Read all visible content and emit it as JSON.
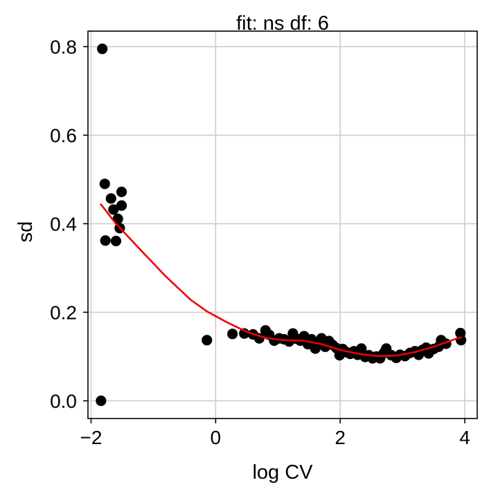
{
  "chart_data": {
    "type": "scatter",
    "title": "fit: ns df: 6",
    "xlabel": "log CV",
    "ylabel": "sd",
    "xlim": [
      -2.05,
      4.2
    ],
    "ylim": [
      -0.04,
      0.835
    ],
    "grid": true,
    "xticks": [
      -2,
      0,
      2,
      4
    ],
    "xtick_labels": [
      "−2",
      "0",
      "2",
      "4"
    ],
    "yticks": [
      0.0,
      0.2,
      0.4,
      0.6,
      0.8
    ],
    "ytick_labels": [
      "0.0",
      "0.2",
      "0.4",
      "0.6",
      "0.8"
    ],
    "colors": {
      "points": "#000000",
      "fit": "#ee0000",
      "grid": "#cccccc",
      "axes": "#000000"
    },
    "series": [
      {
        "kind": "scatter",
        "points": [
          [
            -1.82,
            0.795
          ],
          [
            -1.84,
            0.0
          ],
          [
            -1.78,
            0.49
          ],
          [
            -1.77,
            0.362
          ],
          [
            -1.68,
            0.457
          ],
          [
            -1.64,
            0.432
          ],
          [
            -1.6,
            0.361
          ],
          [
            -1.57,
            0.411
          ],
          [
            -1.54,
            0.39
          ],
          [
            -1.51,
            0.472
          ],
          [
            -1.51,
            0.441
          ],
          [
            -0.14,
            0.137
          ],
          [
            0.27,
            0.151
          ],
          [
            0.46,
            0.152
          ],
          [
            0.6,
            0.15
          ],
          [
            0.7,
            0.141
          ],
          [
            0.8,
            0.159
          ],
          [
            0.86,
            0.149
          ],
          [
            0.94,
            0.136
          ],
          [
            1.02,
            0.141
          ],
          [
            1.1,
            0.139
          ],
          [
            1.18,
            0.134
          ],
          [
            1.24,
            0.152
          ],
          [
            1.3,
            0.14
          ],
          [
            1.36,
            0.136
          ],
          [
            1.42,
            0.146
          ],
          [
            1.48,
            0.128
          ],
          [
            1.54,
            0.139
          ],
          [
            1.6,
            0.118
          ],
          [
            1.66,
            0.131
          ],
          [
            1.7,
            0.141
          ],
          [
            1.76,
            0.122
          ],
          [
            1.82,
            0.135
          ],
          [
            1.88,
            0.126
          ],
          [
            1.94,
            0.119
          ],
          [
            1.99,
            0.103
          ],
          [
            2.04,
            0.117
          ],
          [
            2.1,
            0.11
          ],
          [
            2.16,
            0.106
          ],
          [
            2.22,
            0.112
          ],
          [
            2.28,
            0.104
          ],
          [
            2.34,
            0.118
          ],
          [
            2.4,
            0.099
          ],
          [
            2.46,
            0.103
          ],
          [
            2.52,
            0.096
          ],
          [
            2.58,
            0.1
          ],
          [
            2.64,
            0.096
          ],
          [
            2.7,
            0.108
          ],
          [
            2.74,
            0.118
          ],
          [
            2.82,
            0.103
          ],
          [
            2.9,
            0.097
          ],
          [
            2.96,
            0.104
          ],
          [
            3.04,
            0.101
          ],
          [
            3.12,
            0.108
          ],
          [
            3.2,
            0.112
          ],
          [
            3.26,
            0.104
          ],
          [
            3.32,
            0.115
          ],
          [
            3.38,
            0.12
          ],
          [
            3.42,
            0.107
          ],
          [
            3.5,
            0.117
          ],
          [
            3.58,
            0.122
          ],
          [
            3.62,
            0.137
          ],
          [
            3.7,
            0.129
          ],
          [
            3.93,
            0.153
          ],
          [
            3.94,
            0.137
          ]
        ]
      },
      {
        "kind": "line",
        "points": [
          [
            -1.85,
            0.445
          ],
          [
            -1.6,
            0.4
          ],
          [
            -1.2,
            0.34
          ],
          [
            -0.8,
            0.281
          ],
          [
            -0.4,
            0.228
          ],
          [
            -0.14,
            0.202
          ],
          [
            0.2,
            0.176
          ],
          [
            0.5,
            0.156
          ],
          [
            0.8,
            0.142
          ],
          [
            1.1,
            0.137
          ],
          [
            1.4,
            0.136
          ],
          [
            1.7,
            0.128
          ],
          [
            2.0,
            0.115
          ],
          [
            2.3,
            0.106
          ],
          [
            2.6,
            0.101
          ],
          [
            2.9,
            0.102
          ],
          [
            3.2,
            0.11
          ],
          [
            3.5,
            0.122
          ],
          [
            3.8,
            0.137
          ],
          [
            3.95,
            0.144
          ]
        ]
      }
    ]
  }
}
